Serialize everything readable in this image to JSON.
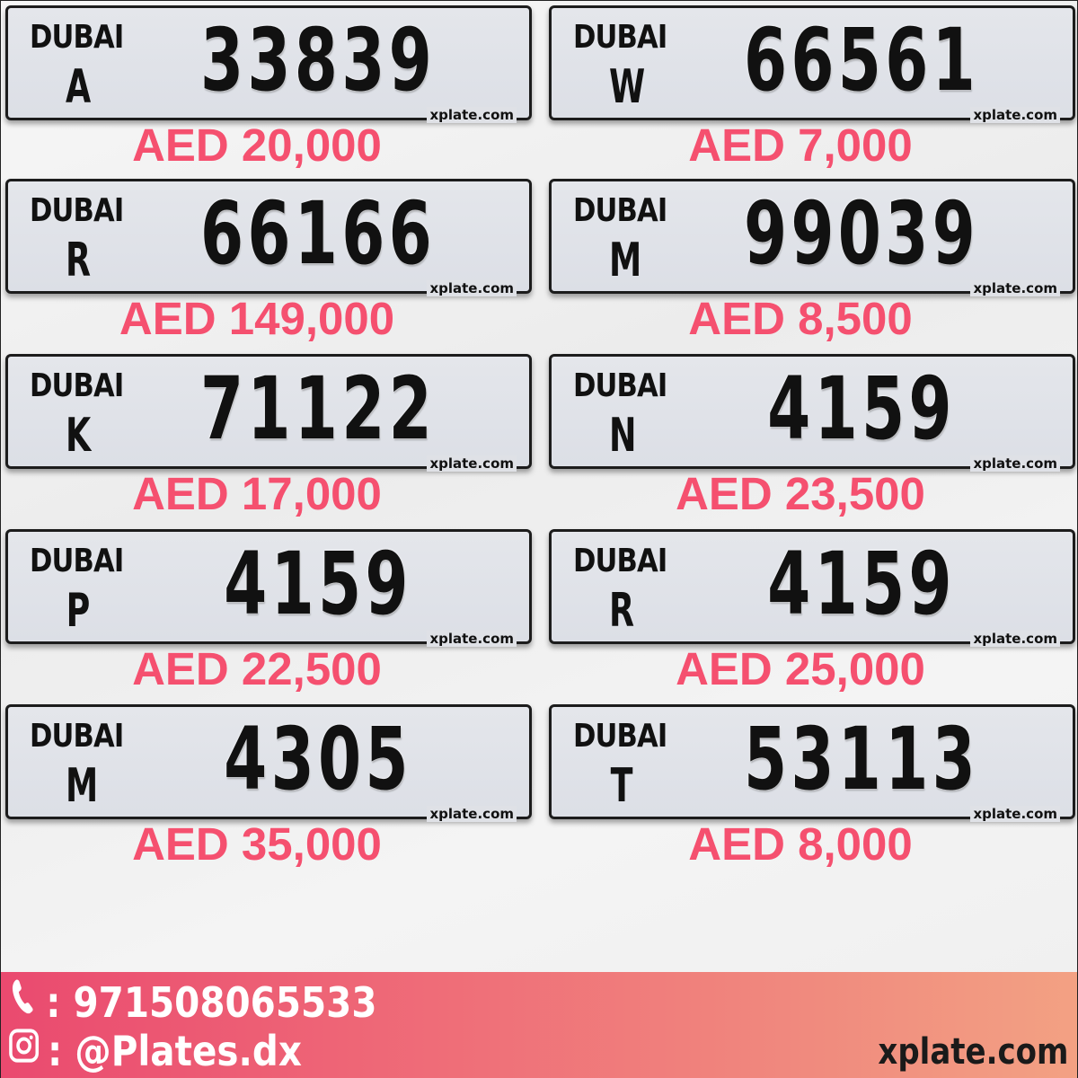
{
  "plates": [
    {
      "emirate": "DUBAI",
      "letter": "A",
      "number": "33839",
      "price": "AED 20,000",
      "brand": "xplate.com"
    },
    {
      "emirate": "DUBAI",
      "letter": "W",
      "number": "66561",
      "price": "AED 7,000",
      "brand": "xplate.com"
    },
    {
      "emirate": "DUBAI",
      "letter": "R",
      "number": "66166",
      "price": "AED 149,000",
      "brand": "xplate.com"
    },
    {
      "emirate": "DUBAI",
      "letter": "M",
      "number": "99039",
      "price": "AED 8,500",
      "brand": "xplate.com"
    },
    {
      "emirate": "DUBAI",
      "letter": "K",
      "number": "71122",
      "price": "AED 17,000",
      "brand": "xplate.com"
    },
    {
      "emirate": "DUBAI",
      "letter": "N",
      "number": "4159",
      "price": "AED 23,500",
      "brand": "xplate.com"
    },
    {
      "emirate": "DUBAI",
      "letter": "P",
      "number": "4159",
      "price": "AED 22,500",
      "brand": "xplate.com"
    },
    {
      "emirate": "DUBAI",
      "letter": "R",
      "number": "4159",
      "price": "AED 25,000",
      "brand": "xplate.com"
    },
    {
      "emirate": "DUBAI",
      "letter": "M",
      "number": "4305",
      "price": "AED 35,000",
      "brand": "xplate.com"
    },
    {
      "emirate": "DUBAI",
      "letter": "T",
      "number": "53113",
      "price": "AED 8,000",
      "brand": "xplate.com"
    }
  ],
  "footer": {
    "phone_icon": "phone-icon",
    "phone": ": 971508065533",
    "instagram_icon": "instagram-icon",
    "instagram": ": @Plates.dx",
    "site": "xplate.com"
  },
  "colors": {
    "price": "#f5506f",
    "footer_start": "#ea4a6f",
    "footer_end": "#f3a183"
  }
}
